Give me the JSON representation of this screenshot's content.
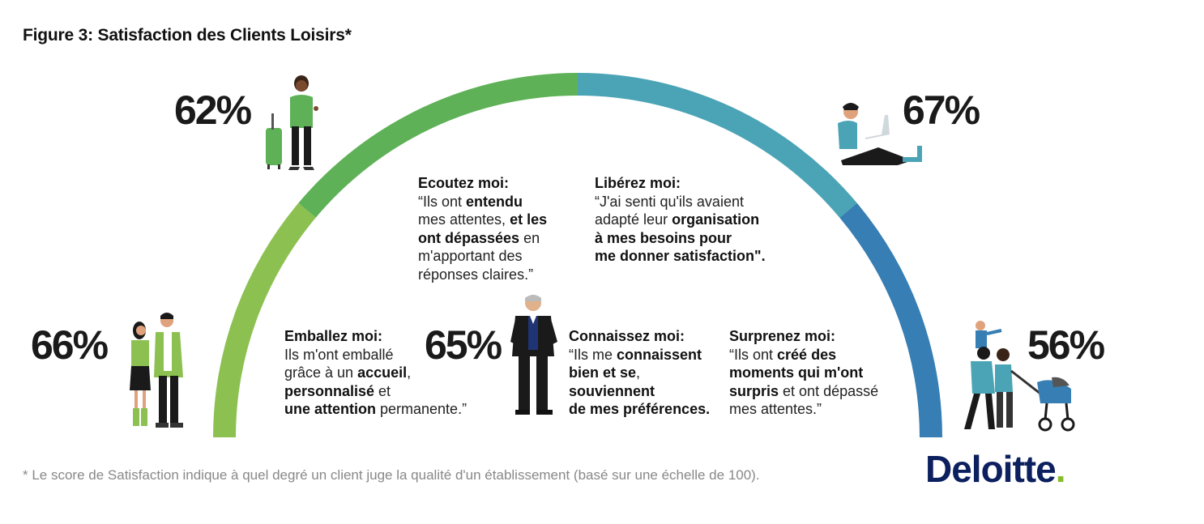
{
  "title": "Figure 3: Satisfaction des Clients Loisirs*",
  "footnote": "* Le score de Satisfaction indique à quel degré un client juge la qualité d'un établissement (basé sur une échelle de 100).",
  "logo": {
    "text": "Deloitte",
    "dot": "."
  },
  "segments": [
    {
      "pct": "66%",
      "color": "#8cc152",
      "heading": "Emballez moi:",
      "lines": [
        [
          [
            "Ils m'ont emballé",
            false
          ]
        ],
        [
          [
            "grâce à un ",
            false
          ],
          [
            "accueil",
            true
          ],
          [
            ",",
            false
          ]
        ],
        [
          [
            "personnalisé",
            true
          ],
          [
            " et",
            false
          ]
        ],
        [
          [
            "une attention",
            true
          ],
          [
            " permanente.”",
            false
          ]
        ]
      ]
    },
    {
      "pct": "62%",
      "color": "#5eb157",
      "heading": "Ecoutez moi:",
      "lines": [
        [
          [
            "“Ils ont ",
            false
          ],
          [
            "entendu",
            true
          ]
        ],
        [
          [
            "mes attentes, ",
            false
          ],
          [
            "et les",
            true
          ]
        ],
        [
          [
            "ont dépassées",
            true
          ],
          [
            " en",
            false
          ]
        ],
        [
          [
            "m'apportant des",
            false
          ]
        ],
        [
          [
            "réponses claires.”",
            false
          ]
        ]
      ]
    },
    {
      "pct": "67%",
      "color": "#4ba4b6",
      "heading": "Libérez moi:",
      "lines": [
        [
          [
            "“J'ai senti qu'ils avaient",
            false
          ]
        ],
        [
          [
            "adapté leur ",
            false
          ],
          [
            "organisation",
            true
          ]
        ],
        [
          [
            "à mes besoins pour",
            true
          ]
        ],
        [
          [
            "me donner satisfaction\".",
            true
          ]
        ]
      ]
    },
    {
      "pct": "56%",
      "color": "#367eb3",
      "heading": "Surprenez moi:",
      "lines": [
        [
          [
            "“Ils ont ",
            false
          ],
          [
            "créé des",
            true
          ]
        ],
        [
          [
            "moments qui m'ont",
            true
          ]
        ],
        [
          [
            "surpris",
            true
          ],
          [
            " et ont dépassé",
            false
          ]
        ],
        [
          [
            "mes attentes.”",
            false
          ]
        ]
      ]
    },
    {
      "pct": "65%",
      "color": "#1f3474",
      "heading": "Connaissez moi:",
      "lines": [
        [
          [
            "“Ils me ",
            false
          ],
          [
            "connaissent",
            true
          ]
        ],
        [
          [
            "bien et se",
            true
          ],
          [
            ",",
            false
          ]
        ],
        [
          [
            "souviennent",
            true
          ]
        ],
        [
          [
            "de mes préférences.",
            true
          ]
        ]
      ]
    }
  ],
  "icons": [
    "traveler-with-suitcase-icon",
    "person-with-laptop-icon",
    "couple-icon",
    "family-with-stroller-icon",
    "businessman-icon"
  ]
}
